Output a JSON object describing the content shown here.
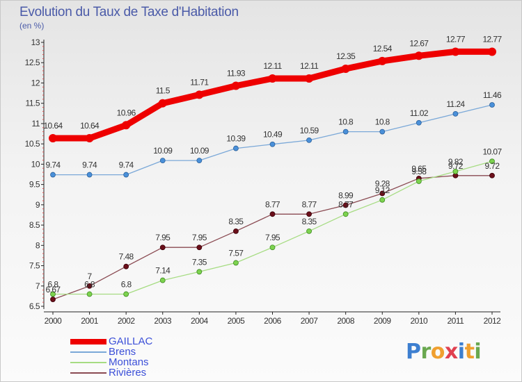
{
  "title": "Evolution du Taux de Taxe d'Habitation",
  "unit": "(en %)",
  "brand": "Proxiti",
  "chart_data": {
    "type": "line",
    "title": "Evolution du Taux de Taxe d'Habitation",
    "ylabel": "(en %)",
    "xlabel": "",
    "x": [
      "2000",
      "2001",
      "2002",
      "2003",
      "2004",
      "2005",
      "2006",
      "2007",
      "2008",
      "2009",
      "2010",
      "2011",
      "2012"
    ],
    "ylim": [
      6.5,
      13
    ],
    "yticks": [
      "6.5",
      "7",
      "7.5",
      "8",
      "8.5",
      "9",
      "9.5",
      "10",
      "10.5",
      "11",
      "11.5",
      "12",
      "12.5",
      "13"
    ],
    "grid": false,
    "legend_position": "bottom-left",
    "series": [
      {
        "name": "GAILLAC",
        "color": "#ee0000",
        "values": [
          10.64,
          10.64,
          10.96,
          11.5,
          11.71,
          11.93,
          12.11,
          12.11,
          12.35,
          12.54,
          12.67,
          12.77,
          12.77
        ],
        "labels": [
          "10.64",
          "10.64",
          "10.96",
          "11.5",
          "11.71",
          "11.93",
          "12.11",
          "12.11",
          "12.35",
          "12.54",
          "12.67",
          "12.77",
          "12.77"
        ]
      },
      {
        "name": "Brens",
        "color": "#4a90d9",
        "values": [
          9.74,
          9.74,
          9.74,
          10.09,
          10.09,
          10.39,
          10.49,
          10.59,
          10.8,
          10.8,
          11.02,
          11.24,
          11.46
        ],
        "labels": [
          "9.74",
          "9.74",
          "9.74",
          "10.09",
          "10.09",
          "10.39",
          "10.49",
          "10.59",
          "10.8",
          "10.8",
          "11.02",
          "11.24",
          "11.46"
        ]
      },
      {
        "name": "Montans",
        "color": "#7dd34f",
        "values": [
          6.8,
          6.8,
          6.8,
          7.14,
          7.35,
          7.57,
          7.95,
          8.35,
          8.77,
          9.12,
          9.58,
          9.82,
          10.07
        ],
        "labels": [
          "6.8",
          "6.8",
          "6.8",
          "7.14",
          "7.35",
          "7.57",
          "7.95",
          "8.35",
          "8.77",
          "9.12",
          "9.58",
          "9.82",
          "10.07"
        ]
      },
      {
        "name": "Rivières",
        "color": "#6b0f1a",
        "values": [
          6.67,
          7,
          7.48,
          7.95,
          7.95,
          8.35,
          8.77,
          8.77,
          8.99,
          9.28,
          9.65,
          9.72,
          9.72
        ],
        "labels": [
          "6.67",
          "7",
          "7.48",
          "7.95",
          "7.95",
          "8.35",
          "8.77",
          "8.77",
          "8.99",
          "9.28",
          "9.65",
          "9.72",
          "9.72"
        ]
      }
    ]
  }
}
